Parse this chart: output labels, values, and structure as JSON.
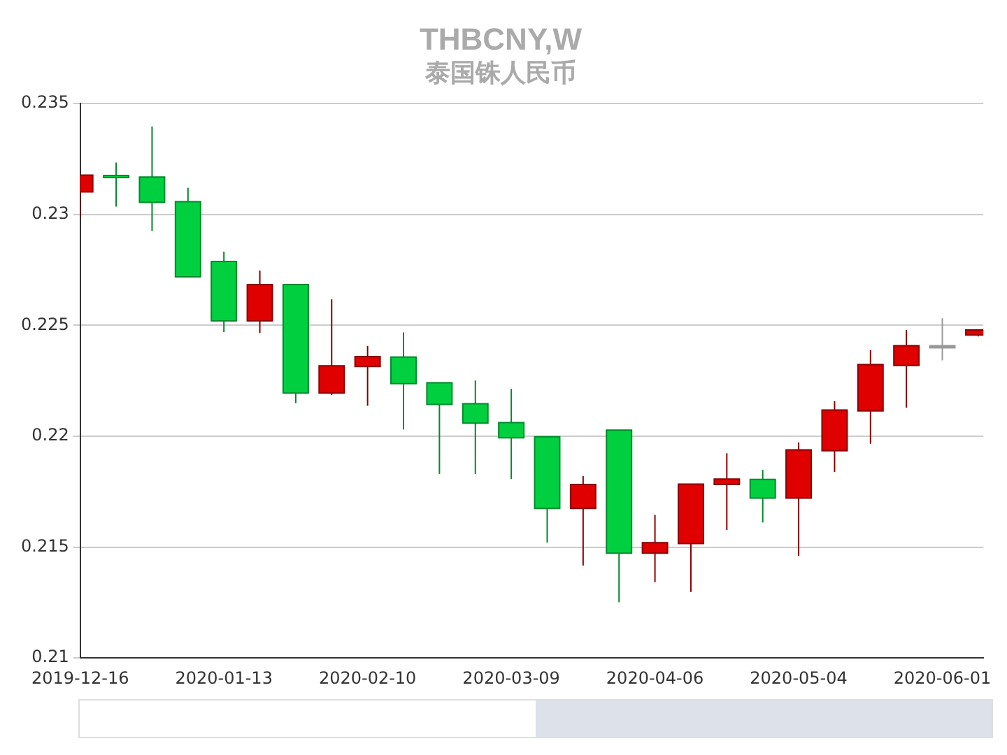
{
  "chart_data": {
    "type": "candlestick",
    "title": "THBCNY,W",
    "subtitle": "泰国铢人民币",
    "x": [
      "2019-12-16",
      "2019-12-23",
      "2019-12-30",
      "2020-01-06",
      "2020-01-13",
      "2020-01-20",
      "2020-01-27",
      "2020-02-03",
      "2020-02-10",
      "2020-02-17",
      "2020-02-24",
      "2020-03-02",
      "2020-03-09",
      "2020-03-16",
      "2020-03-23",
      "2020-03-30",
      "2020-04-06",
      "2020-04-13",
      "2020-04-20",
      "2020-04-27",
      "2020-05-04",
      "2020-05-11",
      "2020-05-18",
      "2020-05-25",
      "2020-06-01",
      "2020-06-08"
    ],
    "ohlc": [
      [
        0.23101,
        0.23177,
        0.22987,
        0.23177
      ],
      [
        0.23175,
        0.23234,
        0.23035,
        0.23171
      ],
      [
        0.23168,
        0.23396,
        0.22925,
        0.23054
      ],
      [
        0.23057,
        0.2312,
        0.22718,
        0.22718
      ],
      [
        0.22788,
        0.22832,
        0.22469,
        0.2252
      ],
      [
        0.2252,
        0.22747,
        0.22465,
        0.22684
      ],
      [
        0.22684,
        0.22684,
        0.22149,
        0.22194
      ],
      [
        0.22194,
        0.22617,
        0.22186,
        0.22317
      ],
      [
        0.22314,
        0.22407,
        0.22137,
        0.22359
      ],
      [
        0.22357,
        0.22468,
        0.2203,
        0.22237
      ],
      [
        0.22241,
        0.22241,
        0.2183,
        0.22143
      ],
      [
        0.22146,
        0.22251,
        0.2183,
        0.22059
      ],
      [
        0.22061,
        0.22213,
        0.21807,
        0.21993
      ],
      [
        0.21997,
        0.21997,
        0.2152,
        0.21674
      ],
      [
        0.21674,
        0.2182,
        0.21417,
        0.21782
      ],
      [
        0.22027,
        0.22027,
        0.21251,
        0.21473
      ],
      [
        0.21473,
        0.21645,
        0.21342,
        0.2152
      ],
      [
        0.21516,
        0.21784,
        0.21298,
        0.21784
      ],
      [
        0.21782,
        0.21923,
        0.21577,
        0.21807
      ],
      [
        0.21805,
        0.21848,
        0.21611,
        0.21721
      ],
      [
        0.21721,
        0.21972,
        0.2146,
        0.21938
      ],
      [
        0.21934,
        0.22158,
        0.21839,
        0.22118
      ],
      [
        0.22114,
        0.22388,
        0.21966,
        0.22323
      ],
      [
        0.22319,
        0.22479,
        0.22128,
        0.22408
      ],
      [
        0.22408,
        0.22532,
        0.22342,
        0.22408
      ],
      [
        0.22456,
        0.2248,
        0.2245,
        0.22479
      ]
    ],
    "colors": [
      "#e00000",
      "#00d040",
      "#00d040",
      "#00d040",
      "#00d040",
      "#e00000",
      "#00d040",
      "#e00000",
      "#e00000",
      "#00d040",
      "#00d040",
      "#00d040",
      "#00d040",
      "#00d040",
      "#e00000",
      "#00d040",
      "#e00000",
      "#e00000",
      "#e00000",
      "#00d040",
      "#e00000",
      "#e00000",
      "#e00000",
      "#e00000",
      "#999999",
      "#e00000"
    ],
    "xlim": [
      "2019-12-16",
      "2020-06-09"
    ],
    "xticks": [
      "2019-12-16",
      "2020-01-13",
      "2020-02-10",
      "2020-03-09",
      "2020-04-06",
      "2020-05-04",
      "2020-06-01"
    ],
    "ylim": [
      0.21,
      0.235
    ],
    "yticks": [
      0.21,
      0.215,
      0.22,
      0.225,
      0.23,
      0.235
    ],
    "grid": "y"
  }
}
